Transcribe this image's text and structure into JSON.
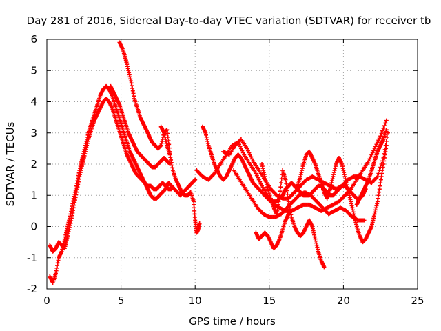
{
  "chart_data": {
    "type": "scatter",
    "title": "Day 281 of 2016, Sidereal Day-to-day VTEC variation (SDTVAR) for receiver tb",
    "xlabel": "GPS time / hours",
    "ylabel": "SDTVAR / TECUs",
    "xlim": [
      0,
      25
    ],
    "ylim": [
      -2,
      6
    ],
    "xticks": [
      0,
      5,
      10,
      15,
      20,
      25
    ],
    "yticks": [
      -2,
      -1,
      0,
      1,
      2,
      3,
      4,
      5,
      6
    ],
    "grid": true,
    "legend": "none",
    "marker": "plus",
    "color": "#ff0000",
    "series": [
      {
        "x": [
          0.2,
          0.4,
          0.6,
          0.8,
          1.0,
          1.2,
          1.4,
          1.6,
          1.8,
          2.0,
          2.2,
          2.4,
          2.6,
          2.8,
          3.0,
          3.2,
          3.4,
          3.6,
          3.8,
          4.0,
          4.2,
          4.4,
          4.6,
          4.8,
          5.0,
          5.2,
          5.4,
          5.6,
          5.8,
          6.0,
          6.2,
          6.4,
          6.6,
          6.8,
          7.0,
          7.2,
          7.4,
          7.6,
          7.8,
          8.0,
          8.2,
          8.4,
          8.6,
          8.8,
          9.0,
          9.2,
          9.4,
          9.6,
          9.8,
          10.0
        ],
        "y": [
          -1.6,
          -1.8,
          -1.5,
          -1.0,
          -0.8,
          -0.4,
          0.0,
          0.4,
          0.9,
          1.3,
          1.8,
          2.2,
          2.6,
          3.0,
          3.3,
          3.6,
          3.9,
          4.2,
          4.4,
          4.5,
          4.4,
          4.2,
          3.9,
          3.6,
          3.3,
          3.0,
          2.7,
          2.4,
          2.2,
          2.0,
          1.8,
          1.6,
          1.4,
          1.2,
          1.0,
          0.9,
          0.9,
          1.0,
          1.1,
          1.2,
          1.4,
          1.3,
          1.2,
          1.1,
          1.0,
          1.1,
          1.2,
          1.3,
          1.4,
          1.5
        ]
      },
      {
        "x": [
          0.2,
          0.4,
          0.6,
          0.8,
          1.0,
          1.2,
          1.4,
          1.6,
          1.8,
          2.0,
          2.2,
          2.4,
          2.6,
          2.8,
          3.0,
          3.2,
          3.4,
          3.6,
          3.8,
          4.0,
          4.2,
          4.4,
          4.6,
          4.8,
          5.0,
          5.2,
          5.4,
          5.6,
          5.8,
          6.0,
          6.2,
          6.4,
          6.6,
          6.8,
          7.0,
          7.2,
          7.4,
          7.6,
          7.8,
          8.0,
          8.2,
          8.4
        ],
        "y": [
          -0.6,
          -0.8,
          -0.7,
          -0.5,
          -0.6,
          -0.7,
          -0.3,
          0.1,
          0.6,
          1.1,
          1.6,
          2.0,
          2.4,
          2.8,
          3.1,
          3.4,
          3.6,
          3.8,
          4.0,
          4.1,
          4.0,
          3.8,
          3.5,
          3.2,
          2.9,
          2.6,
          2.3,
          2.1,
          1.9,
          1.7,
          1.6,
          1.5,
          1.4,
          1.3,
          1.3,
          1.2,
          1.2,
          1.3,
          1.4,
          1.3,
          1.2,
          1.2
        ]
      },
      {
        "x": [
          4.3,
          4.5,
          4.7,
          4.9,
          5.1,
          5.3,
          5.5,
          5.7,
          5.9,
          6.1,
          6.3,
          6.5,
          6.7,
          6.9,
          7.1,
          7.3,
          7.5,
          7.7,
          7.9,
          8.1,
          8.3
        ],
        "y": [
          4.5,
          4.3,
          4.1,
          3.9,
          3.6,
          3.3,
          3.0,
          2.8,
          2.6,
          2.4,
          2.3,
          2.2,
          2.1,
          2.0,
          1.9,
          1.9,
          2.0,
          2.1,
          2.2,
          2.1,
          2.0
        ]
      },
      {
        "x": [
          4.9,
          5.1,
          5.3,
          5.5,
          5.7,
          5.9,
          6.1,
          6.3,
          6.5,
          6.7,
          6.9,
          7.1,
          7.3,
          7.5,
          7.7,
          7.9,
          8.1,
          8.3
        ],
        "y": [
          5.9,
          5.7,
          5.4,
          5.0,
          4.6,
          4.1,
          3.8,
          3.5,
          3.3,
          3.1,
          2.9,
          2.7,
          2.6,
          2.5,
          2.6,
          3.0,
          3.1,
          2.4
        ]
      },
      {
        "x": [
          7.7,
          7.9,
          8.1,
          8.3,
          8.5,
          8.7,
          8.9,
          9.1,
          9.3,
          9.5,
          9.7,
          9.9,
          10.0,
          10.1,
          10.2,
          10.3
        ],
        "y": [
          3.2,
          3.0,
          2.6,
          2.3,
          1.8,
          1.5,
          1.3,
          1.1,
          1.0,
          1.0,
          1.1,
          0.8,
          0.2,
          -0.2,
          -0.1,
          0.1
        ]
      },
      {
        "x": [
          10.5,
          10.7,
          10.9,
          11.1,
          11.3,
          11.5,
          11.7,
          11.9,
          12.1,
          12.3,
          12.5,
          12.7,
          12.9,
          13.1,
          13.3,
          13.5,
          13.7,
          13.9,
          14.1,
          14.3,
          14.5,
          14.7,
          14.9,
          15.1,
          15.3,
          15.5,
          15.7,
          15.9,
          16.1,
          16.3,
          16.5,
          16.7,
          16.9,
          17.1,
          17.3,
          17.5,
          17.7,
          17.9,
          18.1,
          18.3,
          18.5,
          18.7,
          18.9,
          19.1,
          19.3,
          19.5,
          19.7,
          19.9,
          20.1,
          20.3,
          20.5,
          20.7,
          20.9,
          21.1,
          21.3,
          21.5
        ],
        "y": [
          3.2,
          3.0,
          2.6,
          2.3,
          2.0,
          1.8,
          1.6,
          1.5,
          1.6,
          1.8,
          2.0,
          2.2,
          2.3,
          2.2,
          2.0,
          1.8,
          1.6,
          1.4,
          1.3,
          1.2,
          1.1,
          1.0,
          0.9,
          0.8,
          0.8,
          0.8,
          0.9,
          1.0,
          1.2,
          1.3,
          1.4,
          1.3,
          1.2,
          1.1,
          1.0,
          1.0,
          1.0,
          1.1,
          1.2,
          1.3,
          1.3,
          1.2,
          1.1,
          1.0,
          1.0,
          1.1,
          1.2,
          1.3,
          1.3,
          1.2,
          1.1,
          1.0,
          0.9,
          0.9,
          1.0,
          1.2
        ]
      },
      {
        "x": [
          10.1,
          10.5,
          10.9,
          11.3,
          11.7,
          12.1,
          12.5,
          12.9,
          13.3,
          13.7,
          14.1,
          14.5,
          14.9,
          15.3,
          15.7,
          16.1,
          16.5,
          16.9,
          17.3,
          17.7,
          18.1,
          18.5,
          18.9,
          19.3,
          19.7,
          20.1,
          20.5,
          20.9,
          21.3,
          21.7,
          22.1,
          22.5,
          22.9
        ],
        "y": [
          1.8,
          1.6,
          1.5,
          1.7,
          2.0,
          2.3,
          2.6,
          2.7,
          2.3,
          2.0,
          1.7,
          1.3,
          1.0,
          0.7,
          0.6,
          0.5,
          0.5,
          0.6,
          0.7,
          0.7,
          0.6,
          0.5,
          0.6,
          0.7,
          0.8,
          1.0,
          1.2,
          1.5,
          1.8,
          2.1,
          2.5,
          2.9,
          3.4
        ]
      },
      {
        "x": [
          11.9,
          12.3,
          12.7,
          13.1,
          13.5,
          13.9,
          14.3,
          14.7,
          15.1,
          15.5,
          15.9,
          16.3,
          16.7,
          17.1,
          17.5,
          17.9,
          18.3,
          18.7,
          19.1,
          19.5,
          19.9,
          20.3,
          20.7,
          21.1,
          21.5,
          21.9,
          22.3,
          22.7,
          23.0
        ],
        "y": [
          2.4,
          2.3,
          2.6,
          2.8,
          2.5,
          2.1,
          1.8,
          1.5,
          1.2,
          1.0,
          0.9,
          0.9,
          1.1,
          1.3,
          1.5,
          1.6,
          1.5,
          1.4,
          1.3,
          1.2,
          1.3,
          1.5,
          1.6,
          1.6,
          1.5,
          1.4,
          1.6,
          2.2,
          3.0
        ]
      },
      {
        "x": [
          12.6,
          13.0,
          13.4,
          13.8,
          14.2,
          14.6,
          15.0,
          15.4,
          15.8,
          16.2,
          16.6,
          17.0,
          17.4,
          17.8,
          18.2,
          18.6,
          19.0,
          19.4,
          19.8,
          20.2,
          20.6,
          21.0,
          21.4
        ],
        "y": [
          1.8,
          1.5,
          1.2,
          0.9,
          0.6,
          0.4,
          0.3,
          0.3,
          0.4,
          0.6,
          0.8,
          1.0,
          1.1,
          1.0,
          0.8,
          0.6,
          0.4,
          0.5,
          0.6,
          0.5,
          0.3,
          0.2,
          0.2
        ]
      },
      {
        "x": [
          14.1,
          14.3,
          14.5,
          14.7,
          14.9,
          15.1,
          15.3,
          15.5,
          15.7,
          15.9,
          16.1,
          16.3,
          16.5
        ],
        "y": [
          -0.2,
          -0.4,
          -0.3,
          -0.2,
          -0.3,
          -0.5,
          -0.7,
          -0.6,
          -0.4,
          -0.1,
          0.2,
          0.4,
          0.5
        ]
      },
      {
        "x": [
          14.5,
          14.7,
          14.9,
          15.1,
          15.3,
          15.5,
          15.7,
          15.9,
          16.1,
          16.3,
          16.5,
          16.7,
          16.9,
          17.1,
          17.3,
          17.5,
          17.7,
          17.9,
          18.1,
          18.3,
          18.5,
          18.7
        ],
        "y": [
          2.0,
          1.6,
          1.2,
          0.9,
          0.6,
          0.4,
          1.0,
          1.8,
          1.5,
          0.8,
          0.3,
          0.0,
          -0.2,
          -0.3,
          -0.2,
          0.0,
          0.2,
          0.0,
          -0.4,
          -0.8,
          -1.1,
          -1.3
        ]
      },
      {
        "x": [
          16.9,
          17.1,
          17.3,
          17.5,
          17.7,
          17.9,
          18.1,
          18.3,
          18.5,
          18.7,
          18.9,
          19.1,
          19.3,
          19.5,
          19.7,
          19.9,
          20.1,
          20.3,
          20.5,
          20.7,
          20.9,
          21.1,
          21.3,
          21.5,
          21.7,
          21.9,
          22.1,
          22.3,
          22.5,
          22.7,
          22.9
        ],
        "y": [
          1.3,
          1.6,
          2.0,
          2.3,
          2.4,
          2.2,
          2.0,
          1.7,
          1.4,
          1.1,
          0.9,
          1.2,
          1.6,
          2.0,
          2.2,
          2.0,
          1.6,
          1.2,
          0.8,
          0.4,
          0.0,
          -0.3,
          -0.5,
          -0.4,
          -0.2,
          0.0,
          0.4,
          0.8,
          1.4,
          2.0,
          2.6
        ]
      },
      {
        "x": [
          20.9,
          21.1,
          21.3,
          21.5,
          21.7,
          21.9,
          22.1,
          22.3,
          22.5,
          22.7,
          22.9
        ],
        "y": [
          0.7,
          0.9,
          1.1,
          1.3,
          1.5,
          1.8,
          2.1,
          2.4,
          2.6,
          2.8,
          3.1
        ]
      }
    ]
  }
}
